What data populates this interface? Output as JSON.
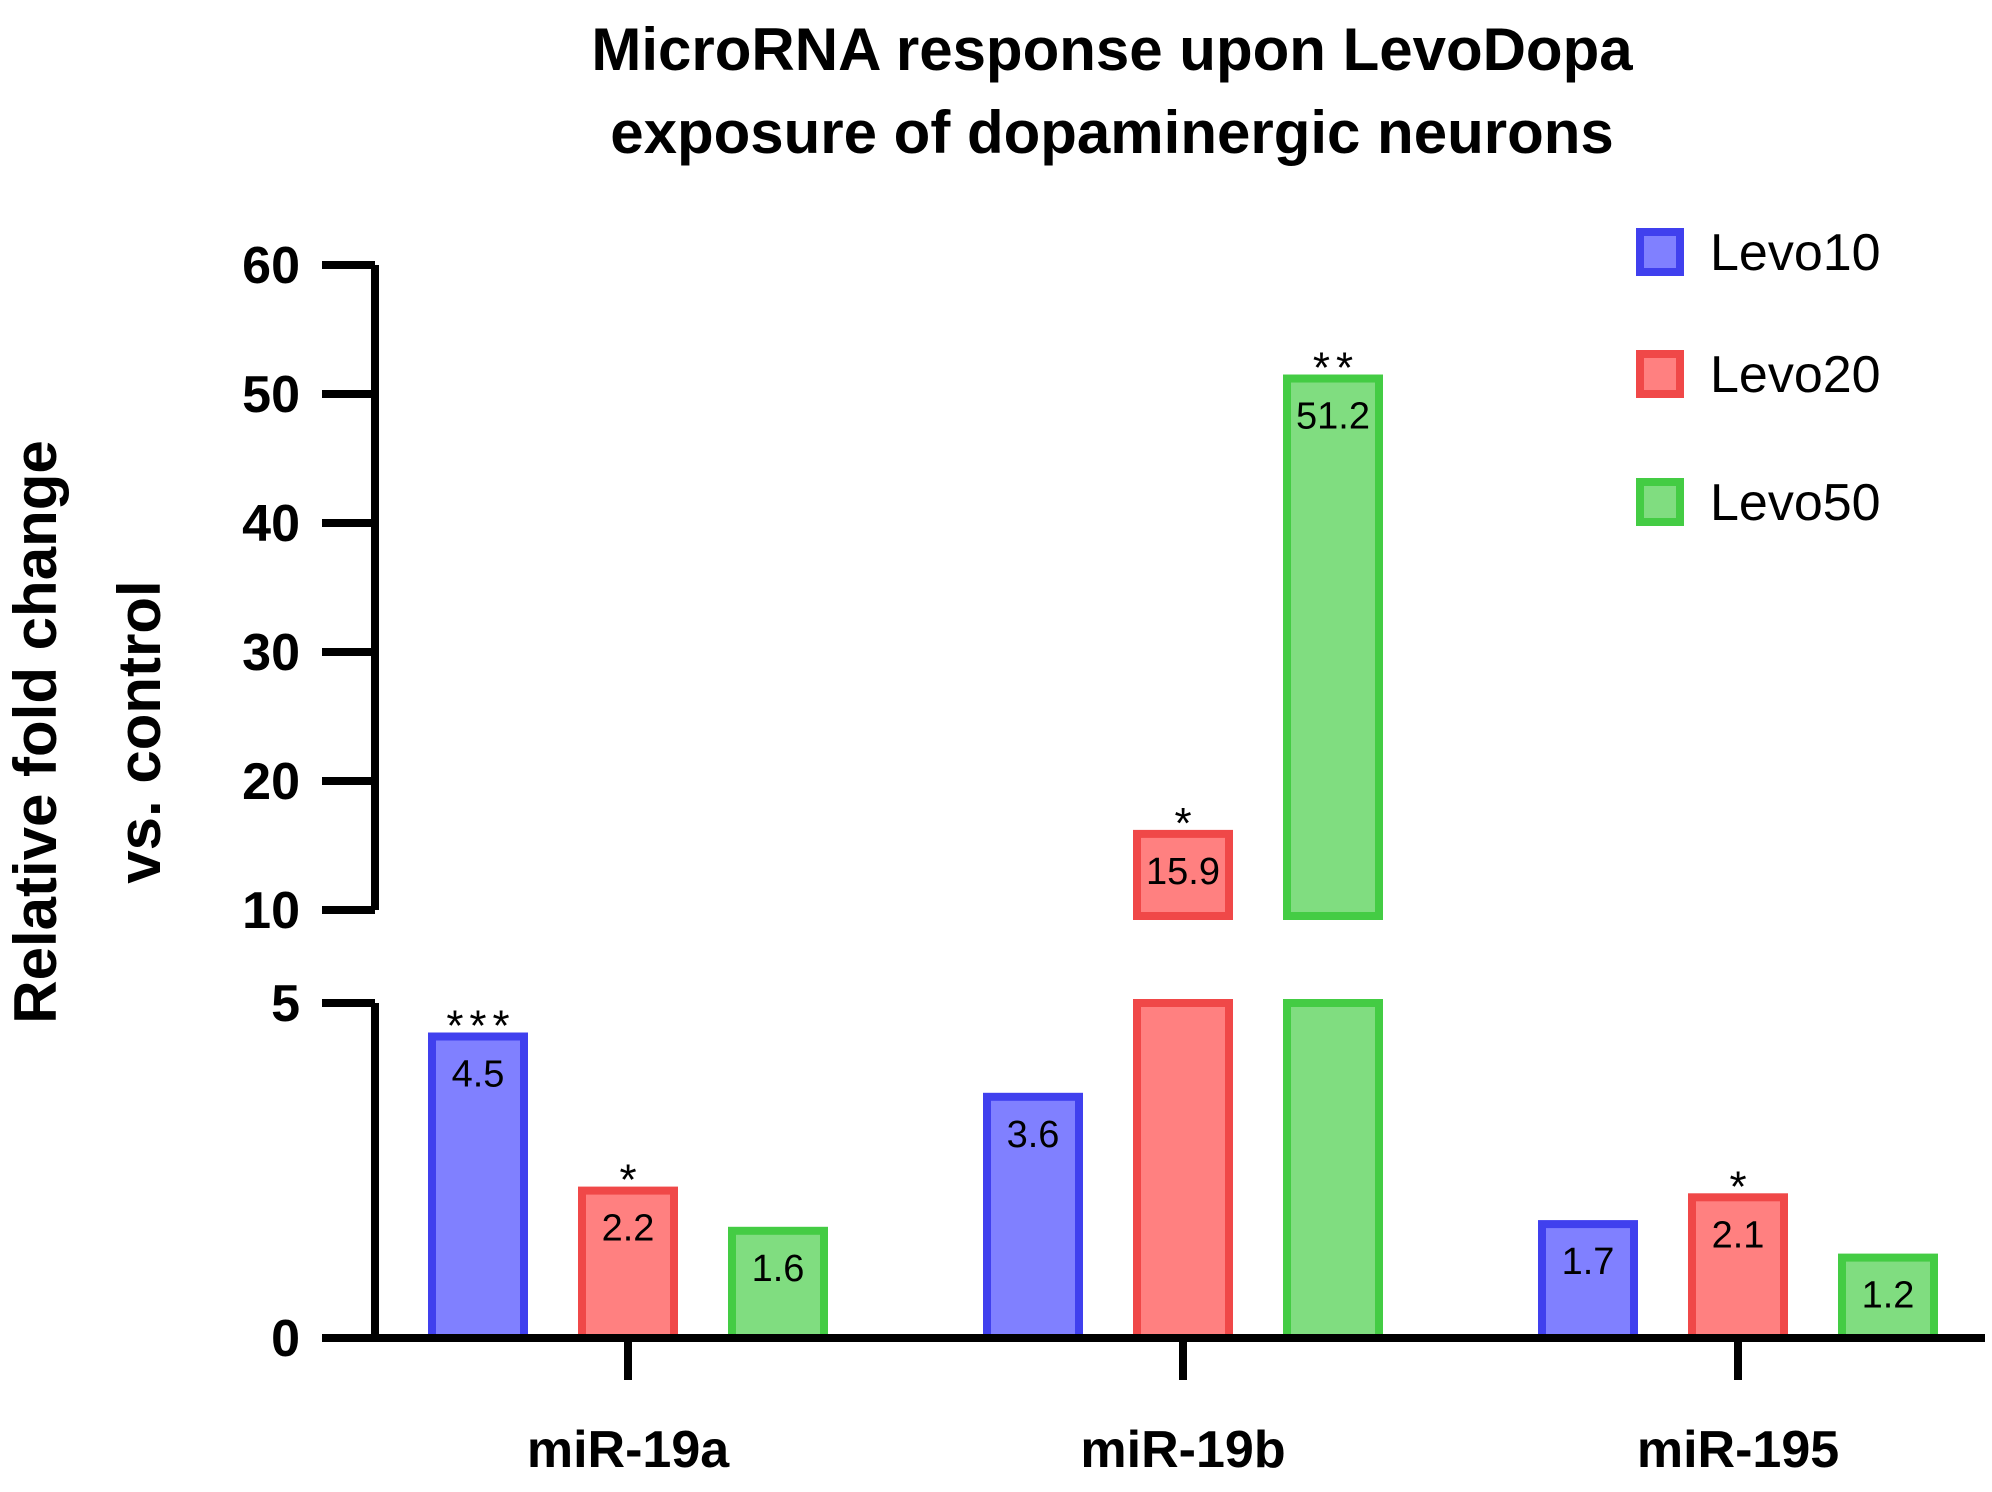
{
  "chart_data": {
    "type": "bar",
    "title": [
      "MicroRNA response upon LevoDopa",
      "exposure of dopaminergic neurons"
    ],
    "ylabel": [
      "Relative fold change",
      "vs. control"
    ],
    "xlabel": "",
    "categories": [
      "miR-19a",
      "miR-19b",
      "miR-195"
    ],
    "series": [
      {
        "name": "Levo10",
        "values": [
          4.5,
          3.6,
          1.7
        ],
        "labels": [
          "4.5",
          "3.6",
          "1.7"
        ],
        "significance": [
          "***",
          "",
          ""
        ],
        "fill": "#8080ff",
        "stroke": "#4040ee"
      },
      {
        "name": "Levo20",
        "values": [
          2.2,
          15.9,
          2.1
        ],
        "labels": [
          "2.2",
          "15.9",
          "2.1"
        ],
        "significance": [
          "*",
          "*",
          "*"
        ],
        "fill": "#ff8080",
        "stroke": "#f04848"
      },
      {
        "name": "Levo50",
        "values": [
          1.6,
          51.2,
          1.2
        ],
        "labels": [
          "1.6",
          "51.2",
          "1.2"
        ],
        "significance": [
          "",
          "**",
          ""
        ],
        "fill": "#80dd80",
        "stroke": "#44cc44"
      }
    ],
    "y_axis": {
      "broken": true,
      "lower_segment": {
        "range": [
          0,
          5
        ],
        "ticks": [
          0,
          5
        ]
      },
      "upper_segment": {
        "range": [
          10,
          60
        ],
        "ticks": [
          10,
          20,
          30,
          40,
          50,
          60
        ]
      }
    },
    "grid": false,
    "legend_position": "top-right"
  }
}
